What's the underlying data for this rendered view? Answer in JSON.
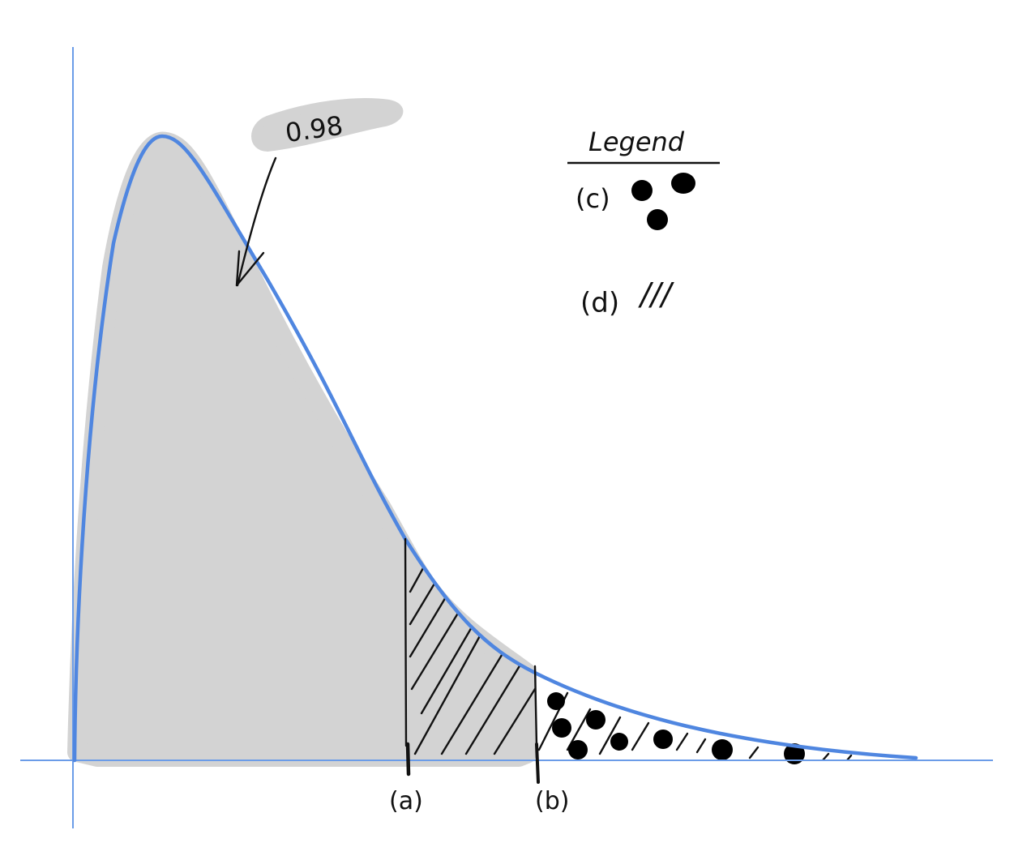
{
  "diagram": {
    "callout_value": "0.98",
    "marker_a": "(a)",
    "marker_b": "(b)",
    "legend": {
      "title": "Legend",
      "items": [
        {
          "label": "(c)",
          "pattern": "dots"
        },
        {
          "label": "(d)",
          "pattern": "hatch",
          "glyph": "///"
        }
      ]
    },
    "colors": {
      "curve": "#4f86e0",
      "axis": "#6b9ce8",
      "fill": "#d3d3d3",
      "ink": "#111111"
    }
  }
}
